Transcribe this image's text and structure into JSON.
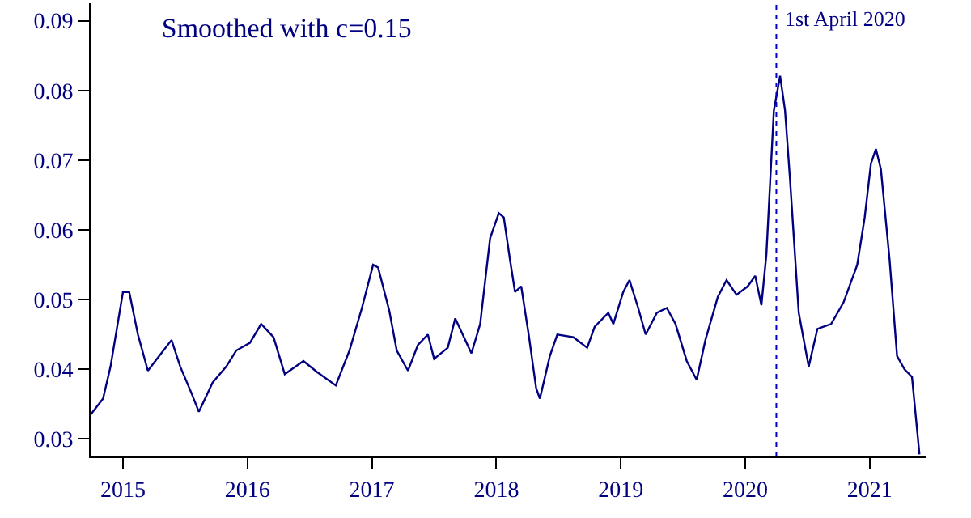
{
  "chart_data": {
    "type": "line",
    "title": "Smoothed with c=0.15",
    "x": [
      2014.74,
      2014.84,
      2014.9,
      2015.0,
      2015.05,
      2015.12,
      2015.2,
      2015.29,
      2015.39,
      2015.46,
      2015.55,
      2015.61,
      2015.72,
      2015.83,
      2015.91,
      2016.02,
      2016.11,
      2016.21,
      2016.3,
      2016.45,
      2016.56,
      2016.71,
      2016.82,
      2016.92,
      2017.01,
      2017.05,
      2017.14,
      2017.2,
      2017.29,
      2017.37,
      2017.45,
      2017.5,
      2017.61,
      2017.67,
      2017.8,
      2017.87,
      2017.95,
      2018.02,
      2018.06,
      2018.11,
      2018.15,
      2018.2,
      2018.26,
      2018.32,
      2018.35,
      2018.43,
      2018.49,
      2018.62,
      2018.73,
      2018.79,
      2018.9,
      2018.94,
      2019.02,
      2019.07,
      2019.14,
      2019.2,
      2019.29,
      2019.37,
      2019.44,
      2019.53,
      2019.61,
      2019.68,
      2019.78,
      2019.85,
      2019.93,
      2020.02,
      2020.08,
      2020.13,
      2020.17,
      2020.23,
      2020.28,
      2020.32,
      2020.36,
      2020.43,
      2020.51,
      2020.58,
      2020.69,
      2020.79,
      2020.9,
      2020.96,
      2021.01,
      2021.05,
      2021.09,
      2021.16,
      2021.22,
      2021.28,
      2021.34,
      2021.4
    ],
    "series": [
      {
        "color": "#000080",
        "values": [
          0.0335,
          0.0358,
          0.0404,
          0.0511,
          0.0511,
          0.045,
          0.0398,
          0.0419,
          0.0442,
          0.0404,
          0.0366,
          0.0339,
          0.0381,
          0.0404,
          0.0427,
          0.0438,
          0.0465,
          0.0446,
          0.0393,
          0.0412,
          0.0396,
          0.0377,
          0.0427,
          0.0488,
          0.055,
          0.0546,
          0.0484,
          0.0427,
          0.0398,
          0.0435,
          0.045,
          0.0415,
          0.0431,
          0.0473,
          0.0423,
          0.0465,
          0.0588,
          0.0624,
          0.0618,
          0.0557,
          0.0511,
          0.0519,
          0.045,
          0.0373,
          0.0358,
          0.0419,
          0.045,
          0.0446,
          0.0431,
          0.0461,
          0.0481,
          0.0465,
          0.0511,
          0.0528,
          0.0488,
          0.045,
          0.0481,
          0.0488,
          0.0465,
          0.0412,
          0.0385,
          0.0442,
          0.0504,
          0.0528,
          0.0507,
          0.0519,
          0.0534,
          0.0492,
          0.0565,
          0.0771,
          0.0821,
          0.0771,
          0.0672,
          0.0481,
          0.0404,
          0.0458,
          0.0465,
          0.0496,
          0.055,
          0.0618,
          0.0695,
          0.0716,
          0.0687,
          0.0557,
          0.0419,
          0.04,
          0.0389,
          0.0278
        ]
      }
    ],
    "xlim": [
      2014.74,
      2021.45
    ],
    "ylim": [
      0.0275,
      0.0925
    ],
    "xticks": [
      2015,
      2016,
      2017,
      2018,
      2019,
      2020,
      2021
    ],
    "yticks": [
      0.03,
      0.04,
      0.05,
      0.06,
      0.07,
      0.08,
      0.09
    ],
    "ref_lines": [
      {
        "axis": "x",
        "value": 2020.25,
        "label": "1st April 2020",
        "color": "#0000cd",
        "line_style": "dotted"
      }
    ],
    "line_style": "solid",
    "marker": "none"
  }
}
